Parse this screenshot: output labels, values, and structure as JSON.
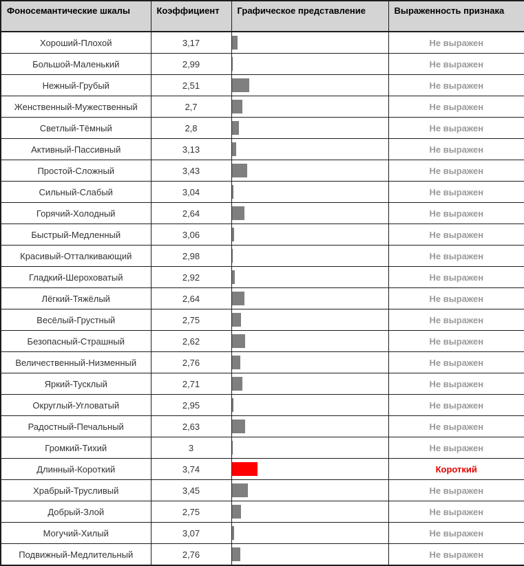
{
  "table": {
    "columns": [
      {
        "label": "Фоносемантические шкалы"
      },
      {
        "label": "Коэффициент"
      },
      {
        "label": "Графическое представление"
      },
      {
        "label": "Выраженность признака"
      }
    ],
    "rows": [
      {
        "scale": "Хороший-Плохой",
        "coefficient": "3,17",
        "expression": "Не выражен",
        "highlighted": false
      },
      {
        "scale": "Большой-Маленький",
        "coefficient": "2,99",
        "expression": "Не выражен",
        "highlighted": false
      },
      {
        "scale": "Нежный-Грубый",
        "coefficient": "2,51",
        "expression": "Не выражен",
        "highlighted": false
      },
      {
        "scale": "Женственный-Мужественный",
        "coefficient": "2,7",
        "expression": "Не выражен",
        "highlighted": false
      },
      {
        "scale": "Светлый-Тёмный",
        "coefficient": "2,8",
        "expression": "Не выражен",
        "highlighted": false
      },
      {
        "scale": "Активный-Пассивный",
        "coefficient": "3,13",
        "expression": "Не выражен",
        "highlighted": false
      },
      {
        "scale": "Простой-Сложный",
        "coefficient": "3,43",
        "expression": "Не выражен",
        "highlighted": false
      },
      {
        "scale": "Сильный-Слабый",
        "coefficient": "3,04",
        "expression": "Не выражен",
        "highlighted": false
      },
      {
        "scale": "Горячий-Холодный",
        "coefficient": "2,64",
        "expression": "Не выражен",
        "highlighted": false
      },
      {
        "scale": "Быстрый-Медленный",
        "coefficient": "3,06",
        "expression": "Не выражен",
        "highlighted": false
      },
      {
        "scale": "Красивый-Отталкивающий",
        "coefficient": "2,98",
        "expression": "Не выражен",
        "highlighted": false
      },
      {
        "scale": "Гладкий-Шероховатый",
        "coefficient": "2,92",
        "expression": "Не выражен",
        "highlighted": false
      },
      {
        "scale": "Лёгкий-Тяжёлый",
        "coefficient": "2,64",
        "expression": "Не выражен",
        "highlighted": false
      },
      {
        "scale": "Весёлый-Грустный",
        "coefficient": "2,75",
        "expression": "Не выражен",
        "highlighted": false
      },
      {
        "scale": "Безопасный-Страшный",
        "coefficient": "2,62",
        "expression": "Не выражен",
        "highlighted": false
      },
      {
        "scale": "Величественный-Низменный",
        "coefficient": "2,76",
        "expression": "Не выражен",
        "highlighted": false
      },
      {
        "scale": "Яркий-Тусклый",
        "coefficient": "2,71",
        "expression": "Не выражен",
        "highlighted": false
      },
      {
        "scale": "Округлый-Угловатый",
        "coefficient": "2,95",
        "expression": "Не выражен",
        "highlighted": false
      },
      {
        "scale": "Радостный-Печальный",
        "coefficient": "2,63",
        "expression": "Не выражен",
        "highlighted": false
      },
      {
        "scale": "Громкий-Тихий",
        "coefficient": "3",
        "expression": "Не выражен",
        "highlighted": false
      },
      {
        "scale": "Длинный-Короткий",
        "coefficient": "3,74",
        "expression": "Короткий",
        "highlighted": true
      },
      {
        "scale": "Храбрый-Трусливый",
        "coefficient": "3,45",
        "expression": "Не выражен",
        "highlighted": false
      },
      {
        "scale": "Добрый-Злой",
        "coefficient": "2,75",
        "expression": "Не выражен",
        "highlighted": false
      },
      {
        "scale": "Могучий-Хилый",
        "coefficient": "3,07",
        "expression": "Не выражен",
        "highlighted": false
      },
      {
        "scale": "Подвижный-Медлительный",
        "coefficient": "2,76",
        "expression": "Не выражен",
        "highlighted": false
      }
    ],
    "colors": {
      "bar_gray": "#7f7f7f",
      "bar_red": "#ff0000",
      "expression_muted": "#9a9a9a",
      "expression_red": "#e10000",
      "header_bg": "#d4d4d4"
    }
  }
}
